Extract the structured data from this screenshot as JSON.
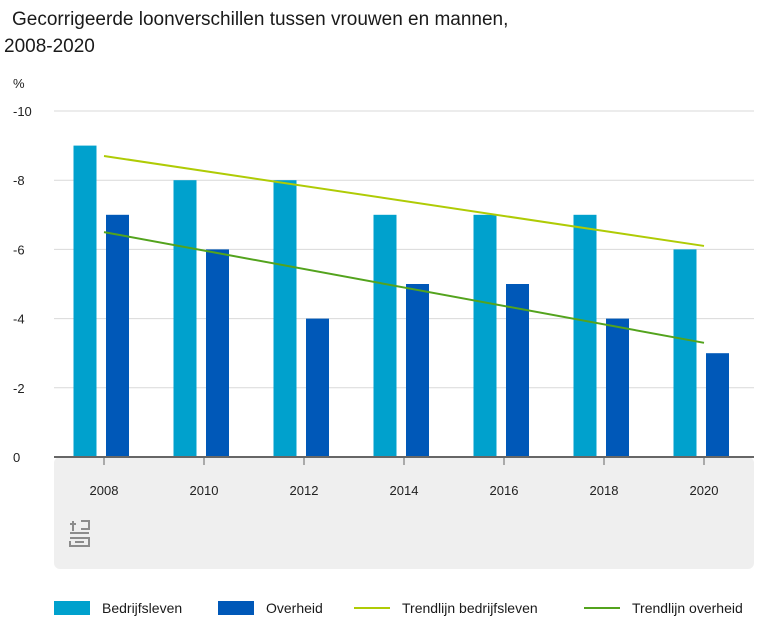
{
  "title_line1": "Gecorrigeerde loonverschillen tussen vrouwen en mannen,",
  "title_line2": "2008-2020",
  "colors": {
    "bedrijfsleven": "#00a1cd",
    "overheid": "#0058b8",
    "trend_bedrijfsleven": "#afcb05",
    "trend_overheid": "#53a31d",
    "grid": "#d9d9d9",
    "axis": "#666666",
    "logo_panel": "#efefef"
  },
  "chart_data": {
    "type": "bar",
    "title": "Gecorrigeerde loonverschillen tussen vrouwen en mannen, 2008-2020",
    "ylabel": "%",
    "xlabel": "",
    "ylim": [
      0,
      -10
    ],
    "y_ticks": [
      "-10",
      "-8",
      "-6",
      "-4",
      "-2",
      "0"
    ],
    "y_tick_values": [
      -10,
      -8,
      -6,
      -4,
      -2,
      0
    ],
    "categories": [
      "2008",
      "2010",
      "2012",
      "2014",
      "2016",
      "2018",
      "2020"
    ],
    "series": [
      {
        "name": "Bedrijfsleven",
        "kind": "bar",
        "values": [
          -9,
          -8,
          -8,
          -7,
          -7,
          -7,
          -6
        ]
      },
      {
        "name": "Overheid",
        "kind": "bar",
        "values": [
          -7,
          -6,
          -4,
          -5,
          -5,
          -4,
          -3
        ]
      },
      {
        "name": "Trendlijn bedrijfsleven",
        "kind": "line",
        "start": -8.7,
        "end": -6.1
      },
      {
        "name": "Trendlijn overheid",
        "kind": "line",
        "start": -6.5,
        "end": -3.3
      }
    ],
    "grid": true,
    "legend_position": "bottom"
  },
  "legend": {
    "bedrijfsleven": "Bedrijfsleven",
    "overheid": "Overheid",
    "trend_bedrijfsleven": "Trendlijn bedrijfsleven",
    "trend_overheid": "Trendlijn overheid"
  },
  "logo_icon": "cbs-logo-icon"
}
